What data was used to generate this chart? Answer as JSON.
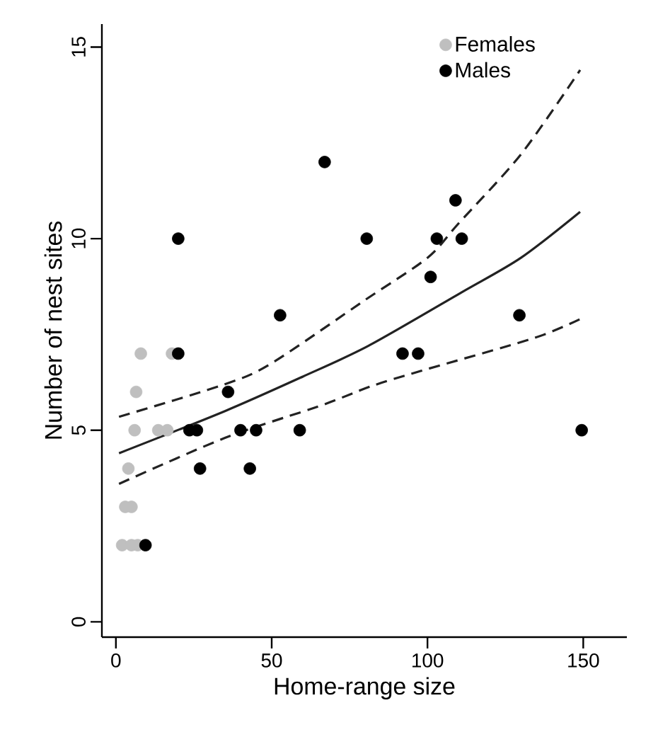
{
  "chart_data": {
    "type": "scatter",
    "xlabel": "Home-range size",
    "ylabel": "Number of nest sites",
    "xlim": [
      -4.5,
      164
    ],
    "ylim": [
      -0.4,
      15.6
    ],
    "xticks": [
      0,
      50,
      100,
      150
    ],
    "yticks": [
      0,
      5,
      10,
      15
    ],
    "grid": false,
    "legend": "top right",
    "marker": "circle",
    "series": [
      {
        "name": "Females",
        "type": "scatter",
        "color": "#bfbfbf",
        "x": [
          8,
          18,
          6.5,
          6,
          13.6,
          16.5,
          4,
          3,
          5,
          2,
          5,
          7
        ],
        "values": [
          7,
          7,
          6,
          5,
          5,
          5,
          4,
          3,
          3,
          2,
          2,
          2
        ]
      },
      {
        "name": "Males",
        "type": "scatter",
        "color": "#000000",
        "x": [
          9.5,
          20,
          20,
          23.6,
          26,
          27,
          52.7,
          36,
          40,
          45,
          43,
          59,
          67,
          80.5,
          92,
          97,
          103,
          111,
          109,
          101,
          129.5,
          149.5
        ],
        "values": [
          2,
          10,
          7,
          5,
          5,
          4,
          8,
          6,
          5,
          5,
          4,
          5,
          12,
          10,
          7,
          7,
          10,
          10,
          11,
          9,
          8,
          5
        ]
      },
      {
        "type": "line",
        "line_style": "solid",
        "marker": "none",
        "color": "#222222",
        "x": [
          1,
          35,
          60,
          81,
          111,
          130,
          149
        ],
        "values": [
          4.4,
          5.5,
          6.4,
          7.2,
          8.6,
          9.5,
          10.7
        ]
      },
      {
        "type": "line",
        "line_style": "dashed",
        "marker": "none",
        "color": "#222222",
        "x": [
          1,
          35,
          50,
          80,
          100,
          110,
          130,
          149
        ],
        "values": [
          5.35,
          6.2,
          6.75,
          8.4,
          9.5,
          10.4,
          12.2,
          14.4
        ]
      },
      {
        "type": "line",
        "line_style": "dashed",
        "marker": "none",
        "color": "#222222",
        "x": [
          1,
          35,
          66,
          82,
          98,
          134,
          149
        ],
        "values": [
          3.6,
          4.8,
          5.65,
          6.15,
          6.55,
          7.4,
          7.9
        ]
      }
    ]
  }
}
